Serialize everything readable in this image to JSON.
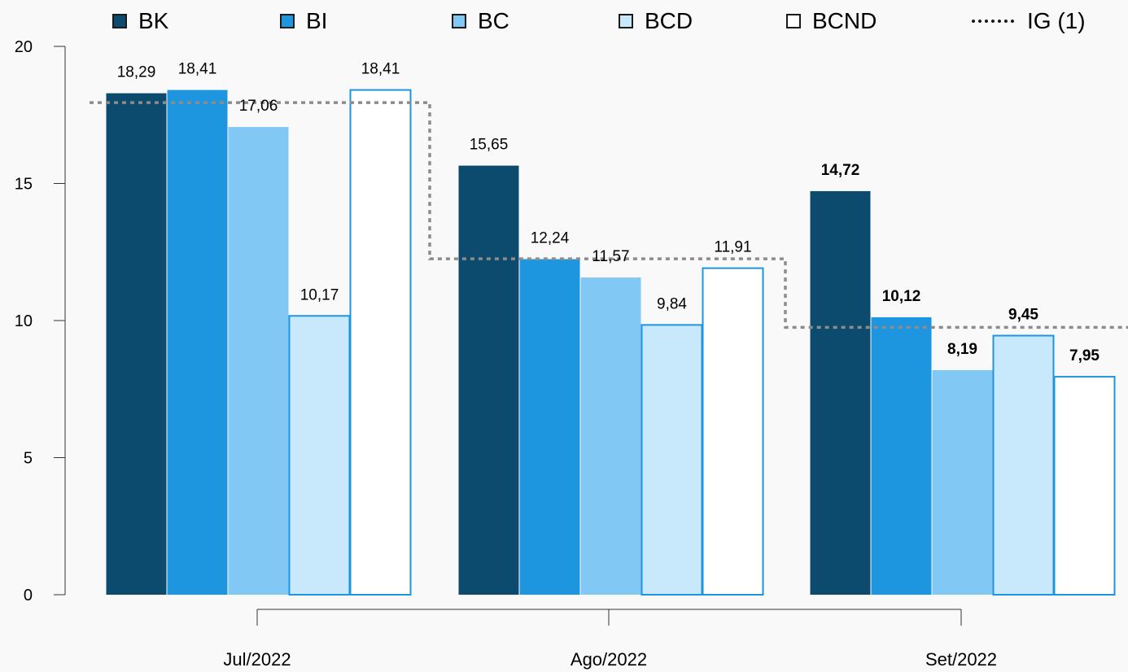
{
  "chart_data": {
    "type": "bar",
    "categories": [
      "Jul/2022",
      "Ago/2022",
      "Set/2022"
    ],
    "series": [
      {
        "name": "BK",
        "color": "#0d4b6e",
        "values": [
          18.29,
          15.65,
          14.72
        ],
        "labels": [
          "18,29",
          "15,65",
          "14,72"
        ]
      },
      {
        "name": "BI",
        "color": "#1e96df",
        "values": [
          18.41,
          12.24,
          10.12
        ],
        "labels": [
          "18,41",
          "12,24",
          "10,12"
        ]
      },
      {
        "name": "BC",
        "color": "#82c8f4",
        "values": [
          17.06,
          11.57,
          8.19
        ],
        "labels": [
          "17,06",
          "11,57",
          "8,19"
        ]
      },
      {
        "name": "BCD",
        "color": "#c8e8fb",
        "values": [
          10.17,
          9.84,
          9.45
        ],
        "labels": [
          "10,17",
          "9,84",
          "9,45"
        ]
      },
      {
        "name": "BCND",
        "color": "#ffffff",
        "values": [
          18.41,
          11.91,
          7.95
        ],
        "labels": [
          "18,41",
          "11,91",
          "7,95"
        ]
      }
    ],
    "reference_line": {
      "name": "IG (1)",
      "style": "dotted step",
      "color": "#8c8c8c",
      "values": [
        17.95,
        12.25,
        9.75
      ]
    },
    "bold_labels_category": "Set/2022",
    "ylim": [
      0,
      20
    ],
    "yticks": [
      "0",
      "5",
      "10",
      "15",
      "20"
    ],
    "grid": false,
    "legend_position": "top",
    "title": "",
    "xlabel": "",
    "ylabel": ""
  }
}
